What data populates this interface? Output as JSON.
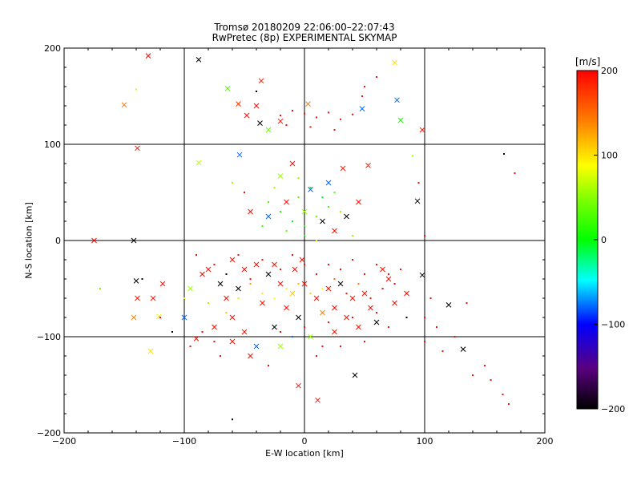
{
  "chart_data": {
    "type": "scatter",
    "title": "Tromsø 20180209 22:06:00–22:07:43",
    "subtitle": "RwPretec (8p) EXPERIMENTAL SKYMAP",
    "xlabel": "E-W location [km]",
    "ylabel": "N-S location [km]",
    "xlim": [
      -200,
      200
    ],
    "ylim": [
      -200,
      200
    ],
    "xticks": [
      "-200",
      "-100",
      "0",
      "100",
      "200"
    ],
    "yticks": [
      "-200",
      "-100",
      "0",
      "100",
      "200"
    ],
    "grid": true,
    "colorbar": {
      "label": "[m/s]",
      "range": [
        -200,
        200
      ],
      "ticks": [
        "-200",
        "-100",
        "0",
        "100",
        "200"
      ],
      "colormap": "black-purple-blue-cyan-green-yellow-orange-red"
    },
    "series": [
      {
        "marker": "x",
        "points": [
          [
            -130,
            192,
            195
          ],
          [
            -88,
            188,
            -200
          ],
          [
            75,
            185,
            110
          ],
          [
            -64,
            158,
            30
          ],
          [
            -150,
            141,
            155
          ],
          [
            -55,
            142,
            180
          ],
          [
            -36,
            166,
            190
          ],
          [
            -37,
            122,
            -200
          ],
          [
            3,
            142,
            150
          ],
          [
            48,
            137,
            -80
          ],
          [
            77,
            146,
            -80
          ],
          [
            80,
            125,
            10
          ],
          [
            98,
            115,
            190
          ],
          [
            -139,
            96,
            195
          ],
          [
            -54,
            89,
            -80
          ],
          [
            -88,
            81,
            70
          ],
          [
            -175,
            0,
            195
          ],
          [
            -142,
            0,
            -200
          ],
          [
            -140,
            -42,
            -200
          ],
          [
            -139,
            -60,
            190
          ],
          [
            -142,
            -80,
            150
          ],
          [
            -126,
            -60,
            190
          ],
          [
            -121,
            -79,
            110
          ],
          [
            -128,
            -115,
            110
          ],
          [
            -20,
            67,
            60
          ],
          [
            5,
            53,
            -80
          ],
          [
            32,
            75,
            190
          ],
          [
            53,
            78,
            190
          ],
          [
            94,
            41,
            -200
          ],
          [
            98,
            -36,
            -200
          ],
          [
            120,
            -67,
            -200
          ],
          [
            132,
            -113,
            -200
          ],
          [
            42,
            -140,
            -200
          ],
          [
            11,
            -166,
            195
          ],
          [
            -5,
            -151,
            195
          ],
          [
            -90,
            -102,
            195
          ],
          [
            -60,
            -80,
            195
          ],
          [
            -45,
            -120,
            195
          ],
          [
            -40,
            -110,
            -80
          ],
          [
            -20,
            -110,
            60
          ],
          [
            -80,
            -30,
            195
          ],
          [
            -70,
            -45,
            -200
          ],
          [
            -60,
            -20,
            195
          ],
          [
            -50,
            -30,
            195
          ],
          [
            -40,
            -25,
            195
          ],
          [
            -30,
            -35,
            -200
          ],
          [
            -25,
            -25,
            195
          ],
          [
            -20,
            -45,
            195
          ],
          [
            -10,
            -55,
            120
          ],
          [
            0,
            -45,
            195
          ],
          [
            10,
            -60,
            195
          ],
          [
            20,
            -50,
            195
          ],
          [
            30,
            -45,
            -200
          ],
          [
            40,
            -60,
            195
          ],
          [
            50,
            -55,
            195
          ],
          [
            55,
            -70,
            195
          ],
          [
            60,
            -85,
            -200
          ],
          [
            45,
            -90,
            195
          ],
          [
            -35,
            -65,
            195
          ],
          [
            -55,
            -50,
            -200
          ],
          [
            -65,
            -60,
            195
          ],
          [
            -75,
            -90,
            195
          ],
          [
            -100,
            -80,
            -80
          ],
          [
            -95,
            -50,
            60
          ],
          [
            -85,
            -35,
            195
          ],
          [
            -15,
            -70,
            195
          ],
          [
            -5,
            -80,
            -200
          ],
          [
            15,
            -75,
            150
          ],
          [
            25,
            -70,
            195
          ],
          [
            35,
            -80,
            195
          ],
          [
            -45,
            30,
            195
          ],
          [
            -30,
            25,
            -80
          ],
          [
            -15,
            40,
            195
          ],
          [
            0,
            30,
            60
          ],
          [
            15,
            20,
            -200
          ],
          [
            25,
            10,
            195
          ],
          [
            35,
            25,
            -200
          ],
          [
            45,
            40,
            195
          ],
          [
            -10,
            80,
            195
          ],
          [
            20,
            60,
            -80
          ],
          [
            -48,
            130,
            195
          ],
          [
            -30,
            115,
            40
          ],
          [
            -20,
            124,
            195
          ],
          [
            -40,
            140,
            195
          ],
          [
            -25,
            -90,
            -200
          ],
          [
            5,
            -100,
            60
          ],
          [
            25,
            -95,
            195
          ],
          [
            -60,
            -105,
            195
          ],
          [
            -50,
            -95,
            195
          ],
          [
            85,
            -55,
            195
          ],
          [
            70,
            -40,
            195
          ],
          [
            75,
            -65,
            195
          ],
          [
            65,
            -30,
            195
          ],
          [
            -2,
            -20,
            195
          ],
          [
            -8,
            -30,
            195
          ],
          [
            -118,
            -45,
            195
          ]
        ]
      },
      {
        "marker": "dot",
        "points": [
          [
            -140,
            157,
            80
          ],
          [
            -40,
            155,
            -200
          ],
          [
            48,
            150,
            195
          ],
          [
            50,
            160,
            195
          ],
          [
            60,
            170,
            195
          ],
          [
            -20,
            130,
            195
          ],
          [
            -10,
            135,
            195
          ],
          [
            0,
            132,
            195
          ],
          [
            10,
            128,
            195
          ],
          [
            20,
            133,
            195
          ],
          [
            30,
            126,
            195
          ],
          [
            40,
            131,
            195
          ],
          [
            -15,
            120,
            195
          ],
          [
            5,
            118,
            195
          ],
          [
            25,
            115,
            195
          ],
          [
            166,
            90,
            -200
          ],
          [
            175,
            70,
            195
          ],
          [
            90,
            88,
            60
          ],
          [
            95,
            60,
            195
          ],
          [
            100,
            5,
            195
          ],
          [
            -60,
            60,
            60
          ],
          [
            -50,
            50,
            195
          ],
          [
            -30,
            40,
            30
          ],
          [
            -20,
            30,
            10
          ],
          [
            -10,
            20,
            0
          ],
          [
            0,
            15,
            10
          ],
          [
            10,
            25,
            40
          ],
          [
            20,
            35,
            20
          ],
          [
            -5,
            45,
            30
          ],
          [
            5,
            55,
            10
          ],
          [
            15,
            45,
            0
          ],
          [
            25,
            50,
            30
          ],
          [
            -25,
            55,
            60
          ],
          [
            -15,
            10,
            40
          ],
          [
            0,
            5,
            10
          ],
          [
            10,
            0,
            80
          ],
          [
            -5,
            65,
            60
          ],
          [
            30,
            30,
            60
          ],
          [
            -35,
            15,
            20
          ],
          [
            40,
            5,
            60
          ],
          [
            -170,
            -50,
            40
          ],
          [
            -135,
            -40,
            -200
          ],
          [
            -110,
            -95,
            -200
          ],
          [
            -60,
            -186,
            -200
          ],
          [
            100,
            -105,
            195
          ],
          [
            125,
            -100,
            195
          ],
          [
            140,
            -140,
            195
          ],
          [
            155,
            -145,
            195
          ],
          [
            165,
            -160,
            195
          ],
          [
            170,
            -170,
            195
          ],
          [
            115,
            -115,
            195
          ],
          [
            135,
            -65,
            195
          ],
          [
            150,
            -130,
            195
          ],
          [
            -95,
            -110,
            195
          ],
          [
            -70,
            -120,
            195
          ],
          [
            -30,
            -130,
            195
          ],
          [
            10,
            -120,
            195
          ],
          [
            30,
            -110,
            195
          ],
          [
            50,
            -105,
            195
          ],
          [
            70,
            -90,
            195
          ],
          [
            85,
            -80,
            -200
          ],
          [
            105,
            -60,
            195
          ],
          [
            -80,
            -65,
            60
          ],
          [
            -65,
            -75,
            120
          ],
          [
            -55,
            -60,
            80
          ],
          [
            -45,
            -45,
            140
          ],
          [
            -35,
            -55,
            110
          ],
          [
            -25,
            -60,
            100
          ],
          [
            -15,
            -50,
            90
          ],
          [
            -5,
            -45,
            130
          ],
          [
            5,
            -55,
            120
          ],
          [
            15,
            -50,
            100
          ],
          [
            25,
            -40,
            160
          ],
          [
            35,
            -55,
            190
          ],
          [
            45,
            -45,
            150
          ],
          [
            55,
            -60,
            190
          ],
          [
            65,
            -50,
            195
          ],
          [
            75,
            -45,
            195
          ],
          [
            -90,
            -15,
            195
          ],
          [
            -75,
            -25,
            195
          ],
          [
            -65,
            -35,
            -200
          ],
          [
            -55,
            -15,
            195
          ],
          [
            -45,
            -40,
            195
          ],
          [
            -35,
            -20,
            195
          ],
          [
            -20,
            -30,
            195
          ],
          [
            -10,
            -15,
            195
          ],
          [
            0,
            -25,
            195
          ],
          [
            10,
            -35,
            195
          ],
          [
            20,
            -25,
            195
          ],
          [
            30,
            -30,
            195
          ],
          [
            40,
            -20,
            195
          ],
          [
            50,
            -35,
            195
          ],
          [
            60,
            -25,
            195
          ],
          [
            70,
            -35,
            195
          ],
          [
            80,
            -30,
            195
          ],
          [
            -85,
            -95,
            195
          ],
          [
            -75,
            -105,
            195
          ],
          [
            -20,
            -95,
            195
          ],
          [
            0,
            -90,
            195
          ],
          [
            20,
            -85,
            195
          ],
          [
            40,
            -80,
            195
          ],
          [
            60,
            -75,
            195
          ],
          [
            -120,
            -80,
            195
          ],
          [
            -100,
            -60,
            80
          ],
          [
            100,
            -80,
            195
          ],
          [
            110,
            -90,
            195
          ],
          [
            -10,
            -100,
            -80
          ],
          [
            15,
            -110,
            195
          ]
        ]
      }
    ]
  }
}
